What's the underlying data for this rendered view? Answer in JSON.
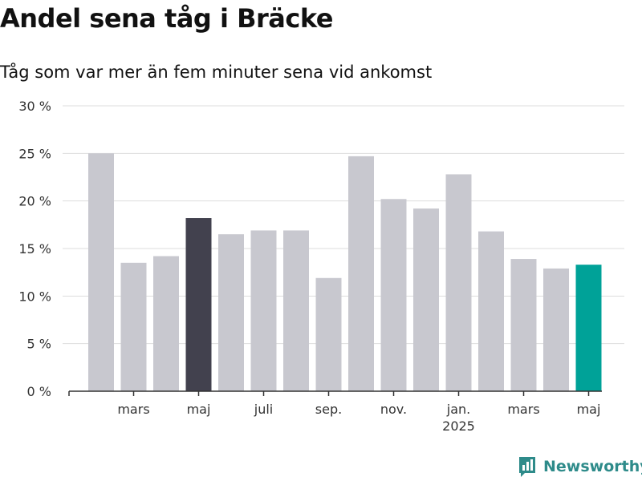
{
  "chart_data": {
    "type": "bar",
    "title": "Andel sena tåg i Bräcke",
    "subtitle": "Tåg som var mer än fem minuter sena vid ankomst",
    "ylim": [
      0,
      30
    ],
    "yticks": [
      0,
      5,
      10,
      15,
      20,
      25,
      30
    ],
    "ytick_labels": [
      "0 %",
      "5 %",
      "10 %",
      "15 %",
      "20 %",
      "25 %",
      "30 %"
    ],
    "grid": true,
    "values": [
      25.0,
      13.5,
      14.2,
      18.2,
      16.5,
      16.9,
      16.9,
      11.9,
      24.7,
      20.2,
      19.2,
      22.8,
      16.8,
      13.9,
      12.9,
      13.3
    ],
    "bar_colors": [
      "#c8c8cf",
      "#c8c8cf",
      "#c8c8cf",
      "#42414e",
      "#c8c8cf",
      "#c8c8cf",
      "#c8c8cf",
      "#c8c8cf",
      "#c8c8cf",
      "#c8c8cf",
      "#c8c8cf",
      "#c8c8cf",
      "#c8c8cf",
      "#c8c8cf",
      "#c8c8cf",
      "#00a298"
    ],
    "xtick_labels": [
      "mars",
      "maj",
      "juli",
      "sep.",
      "nov.",
      "jan.",
      "mars",
      "maj"
    ],
    "xtick_sublabels": [
      "",
      "",
      "",
      "",
      "",
      "2025",
      "",
      ""
    ],
    "xtick_bar_index": [
      1,
      3,
      5,
      7,
      9,
      11,
      13,
      15
    ]
  },
  "branding": {
    "name": "Newsworthy",
    "color": "#2e8b8a"
  },
  "colors": {
    "grid": "#dddddd",
    "axis": "#333333",
    "tick_text": "#333333"
  }
}
